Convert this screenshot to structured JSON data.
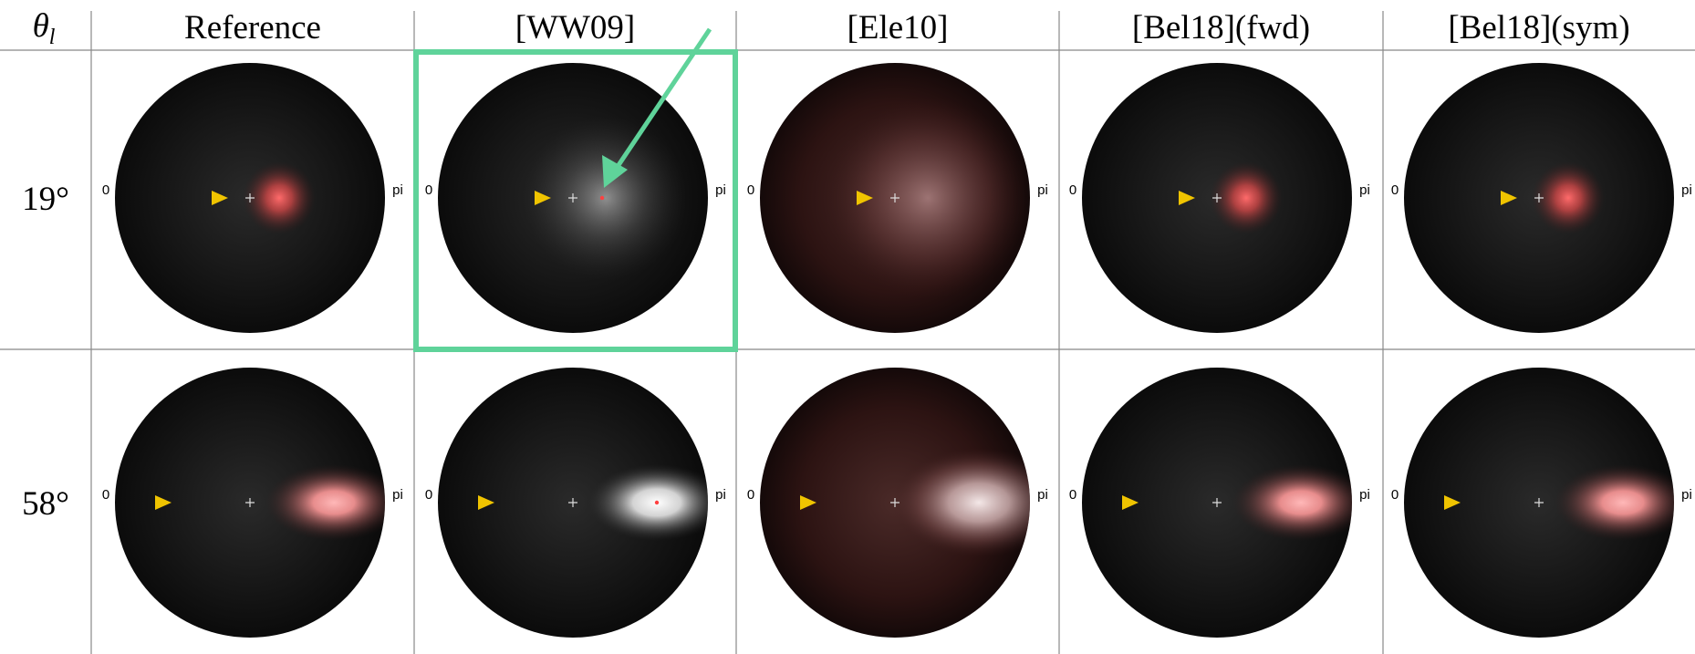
{
  "corner": {
    "symbol": "θ",
    "subscript": "l"
  },
  "columns": [
    "Reference",
    "[WW09]",
    "[Ele10]",
    "[Bel18](fwd)",
    "[Bel18](sym)"
  ],
  "rows": [
    "19°",
    "58°"
  ],
  "disk_labels": {
    "left": "0",
    "right": "pi"
  }
}
